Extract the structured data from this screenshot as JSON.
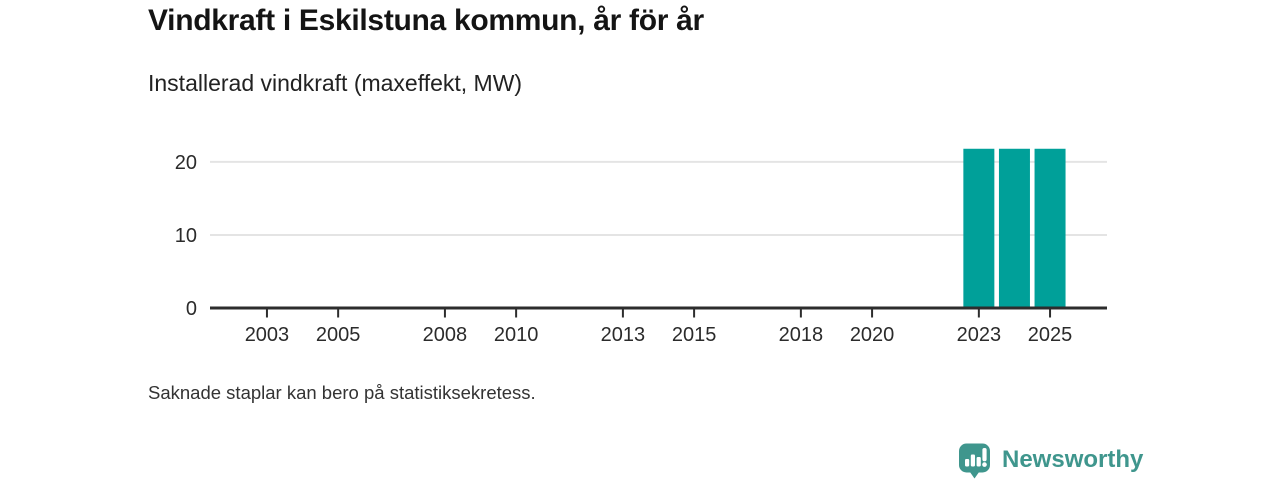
{
  "header": {
    "title": "Vindkraft i Eskilstuna kommun, år för år",
    "subtitle": "Installerad vindkraft (maxeffekt, MW)"
  },
  "chart_data": {
    "type": "bar",
    "title": "Vindkraft i Eskilstuna kommun, år för år",
    "subtitle": "Installerad vindkraft (maxeffekt, MW)",
    "ylabel": "Installerad vindkraft (maxeffekt, MW)",
    "unit": "MW",
    "x_domain": [
      2001.4,
      2026.6
    ],
    "x_ticks": [
      2003,
      2005,
      2008,
      2010,
      2013,
      2015,
      2018,
      2020,
      2023,
      2025
    ],
    "y_ticks": [
      0,
      10,
      20
    ],
    "ylim": [
      0,
      23
    ],
    "grid": true,
    "legend": "none",
    "bars": [
      {
        "year": 2023,
        "value": 21.8
      },
      {
        "year": 2024,
        "value": 21.8
      },
      {
        "year": 2025,
        "value": 21.8
      }
    ],
    "missing_bars_note": "Saknade staplar kan bero på statistiksekretess.",
    "colors": {
      "bar": "#00a099",
      "axis": "#2d2d2d",
      "grid": "#e4e4e4",
      "tick_label": "#2b2b2b"
    }
  },
  "footer": {
    "note": "Saknade staplar kan bero på statistiksekretess."
  },
  "branding": {
    "label": "Newsworthy",
    "icon": "newsworthy-speech-bubble-bar-chart-icon",
    "color": "#3f968d"
  }
}
